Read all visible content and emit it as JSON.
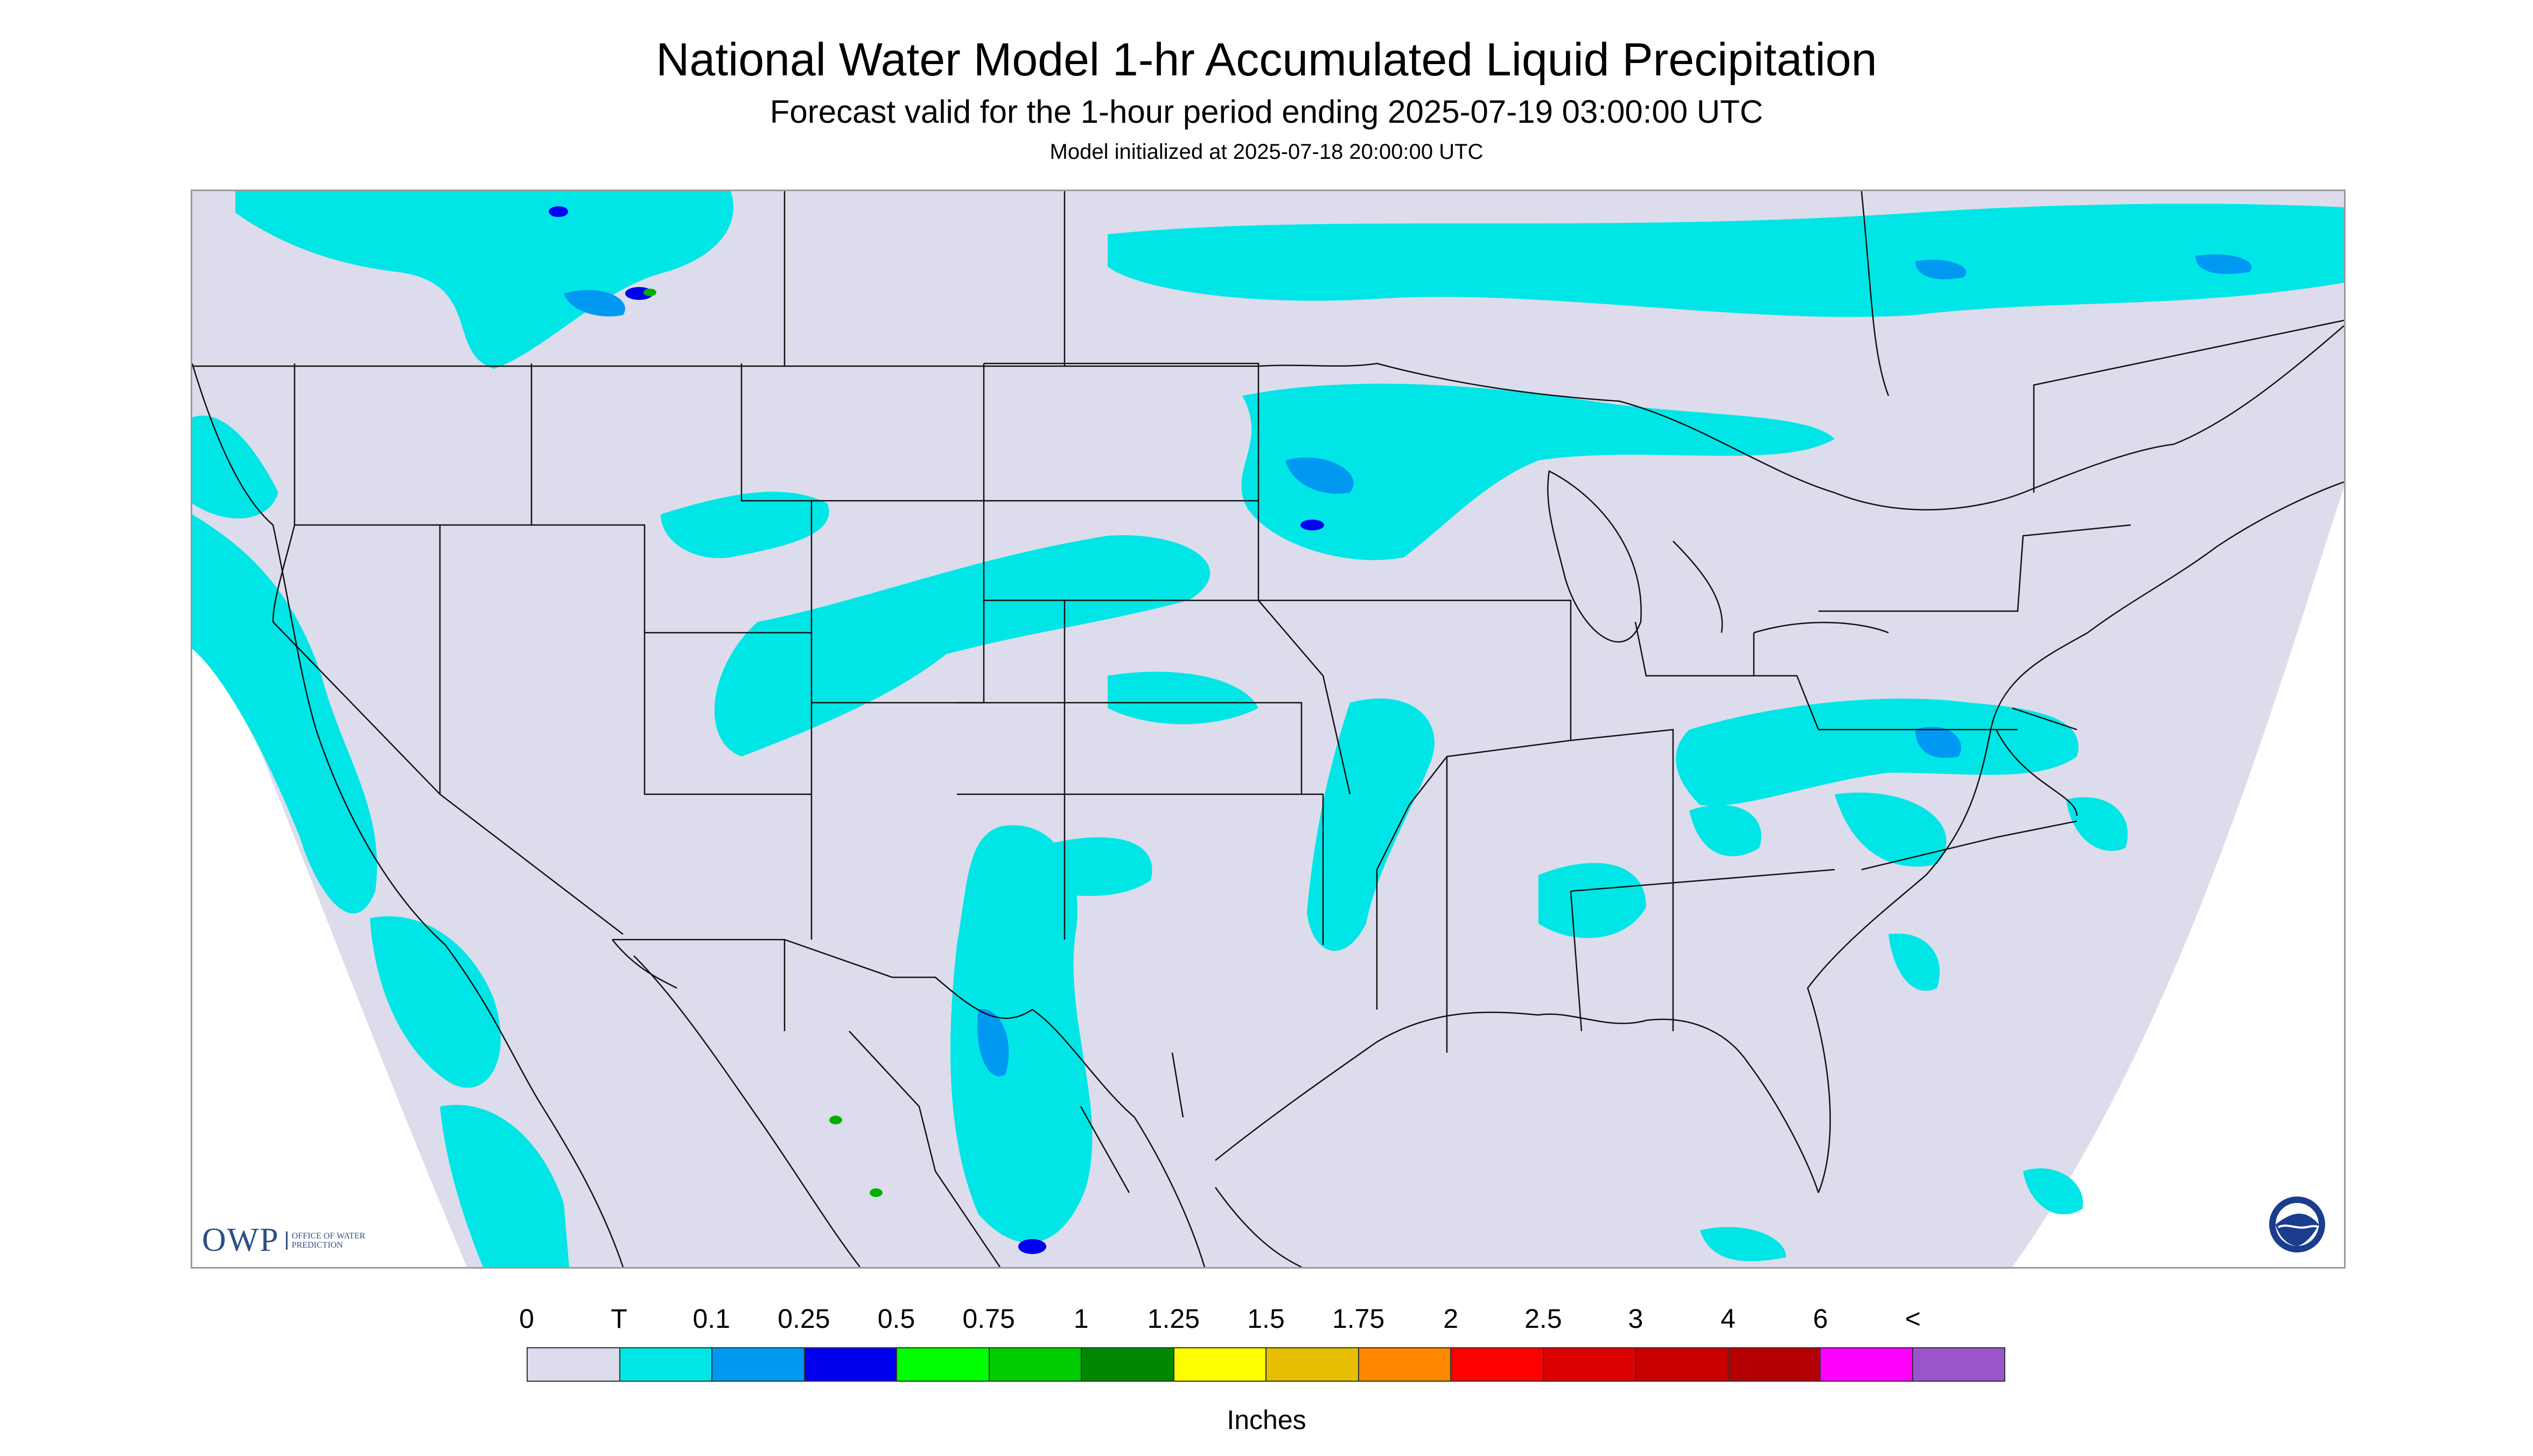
{
  "header": {
    "title": "National Water Model 1-hr Accumulated Liquid Precipitation",
    "subtitle": "Forecast valid for the 1-hour period ending 2025-07-19 03:00:00 UTC",
    "init": "Model initialized at 2025-07-18 20:00:00 UTC"
  },
  "map": {
    "background_color": "#dcdcec",
    "outside_domain_color": "#ffffff",
    "boundary_color": "#111111",
    "precip_colors": {
      "trace": "#00e6e6",
      "light": "#0099f2",
      "moderate": "#0000f0",
      "heavy": "#00b000"
    }
  },
  "logos": {
    "owp": {
      "word": "OWP",
      "subtitle": "OFFICE OF WATER PREDICTION"
    },
    "noaa": {
      "name": "NOAA",
      "icon": "noaa-logo-icon"
    }
  },
  "legend": {
    "labels": [
      "0",
      "T",
      "0.1",
      "0.25",
      "0.5",
      "0.75",
      "1",
      "1.25",
      "1.5",
      "1.75",
      "2",
      "2.5",
      "3",
      "4",
      "6",
      "<"
    ],
    "colors": [
      "#dcdcec",
      "#00e6e6",
      "#0099f2",
      "#0000f0",
      "#00ff00",
      "#00cc00",
      "#008800",
      "#ffff00",
      "#e6c000",
      "#ff8800",
      "#ff0000",
      "#dd0000",
      "#c80000",
      "#b40000",
      "#ff00ff",
      "#9955cc"
    ],
    "units": "Inches"
  }
}
